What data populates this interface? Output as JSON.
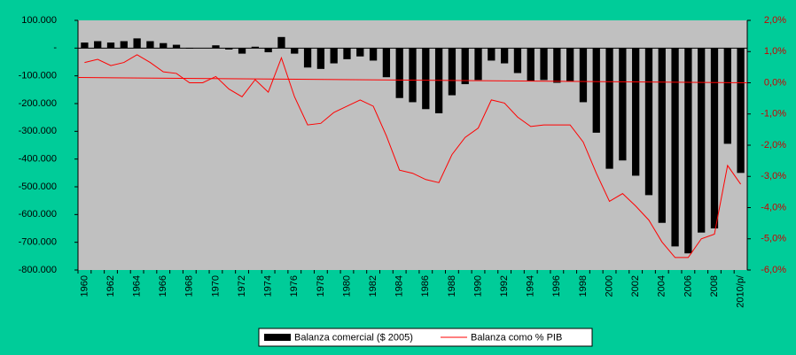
{
  "chart_data": {
    "type": "bar-line",
    "categories": [
      "1960",
      null,
      "1962",
      null,
      "1964",
      null,
      "1966",
      null,
      "1968",
      null,
      "1970",
      null,
      "1972",
      null,
      "1974",
      null,
      "1976",
      null,
      "1978",
      null,
      "1980",
      null,
      "1982",
      null,
      "1984",
      null,
      "1986",
      null,
      "1988",
      null,
      "1990",
      null,
      "1992",
      null,
      "1994",
      null,
      "1996",
      null,
      "1998",
      null,
      "2000",
      null,
      "2002",
      null,
      "2004",
      null,
      "2006",
      null,
      "2008",
      null,
      "2010/p/"
    ],
    "series": [
      {
        "name": "Balanza comercial ($ 2005)",
        "type": "bar",
        "color": "#000000",
        "values": [
          20000,
          25000,
          20000,
          25000,
          35000,
          25000,
          18000,
          12000,
          -2000,
          0,
          10000,
          -5000,
          -20000,
          5000,
          -15000,
          40000,
          -20000,
          -70000,
          -75000,
          -55000,
          -40000,
          -30000,
          -45000,
          -105000,
          -180000,
          -195000,
          -220000,
          -235000,
          -170000,
          -130000,
          -115000,
          -45000,
          -55000,
          -90000,
          -120000,
          -115000,
          -125000,
          -120000,
          -195000,
          -305000,
          -435000,
          -405000,
          -460000,
          -530000,
          -630000,
          -715000,
          -740000,
          -665000,
          -650000,
          -345000,
          -450000
        ]
      },
      {
        "name": "Balanza como % PIB",
        "type": "line",
        "axis": "y2",
        "color": "#ff0000",
        "values": [
          0.65,
          0.75,
          0.55,
          0.65,
          0.9,
          0.65,
          0.35,
          0.3,
          0.0,
          0.0,
          0.2,
          -0.2,
          -0.45,
          0.1,
          -0.3,
          0.8,
          -0.45,
          -1.35,
          -1.3,
          -0.95,
          -0.75,
          -0.55,
          -0.75,
          -1.7,
          -2.8,
          -2.9,
          -3.1,
          -3.2,
          -2.3,
          -1.75,
          -1.45,
          -0.55,
          -0.65,
          -1.1,
          -1.4,
          -1.35,
          -1.35,
          -1.35,
          -1.9,
          -2.9,
          -3.8,
          -3.55,
          -3.95,
          -4.4,
          -5.1,
          -5.6,
          -5.6,
          -5.0,
          -4.85,
          -2.65,
          -3.25
        ]
      }
    ],
    "trendline": {
      "axis": "y2",
      "color": "#ff0000",
      "values": [
        0.17,
        0.0
      ]
    },
    "ylim": [
      -800000,
      100000
    ],
    "yticks": [
      {
        "value": 100000,
        "label": "100.000"
      },
      {
        "value": 0,
        "label": "-"
      },
      {
        "value": -100000,
        "label": "-100.000"
      },
      {
        "value": -200000,
        "label": "-200.000"
      },
      {
        "value": -300000,
        "label": "-300.000"
      },
      {
        "value": -400000,
        "label": "-400.000"
      },
      {
        "value": -500000,
        "label": "-500.000"
      },
      {
        "value": -600000,
        "label": "-600.000"
      },
      {
        "value": -700000,
        "label": "-700.000"
      },
      {
        "value": -800000,
        "label": "-800.000"
      }
    ],
    "y2lim": [
      -6,
      2
    ],
    "y2ticks": [
      {
        "value": 2,
        "label": "2,0%"
      },
      {
        "value": 1,
        "label": "1,0%"
      },
      {
        "value": 0,
        "label": "0,0%"
      },
      {
        "value": -1,
        "label": "-1,0%"
      },
      {
        "value": -2,
        "label": "-2,0%"
      },
      {
        "value": -3,
        "label": "-3,0%"
      },
      {
        "value": -4,
        "label": "-4,0%"
      },
      {
        "value": -5,
        "label": "-5,0%"
      },
      {
        "value": -6,
        "label": "-6,0%"
      }
    ],
    "legend": "bottom"
  }
}
